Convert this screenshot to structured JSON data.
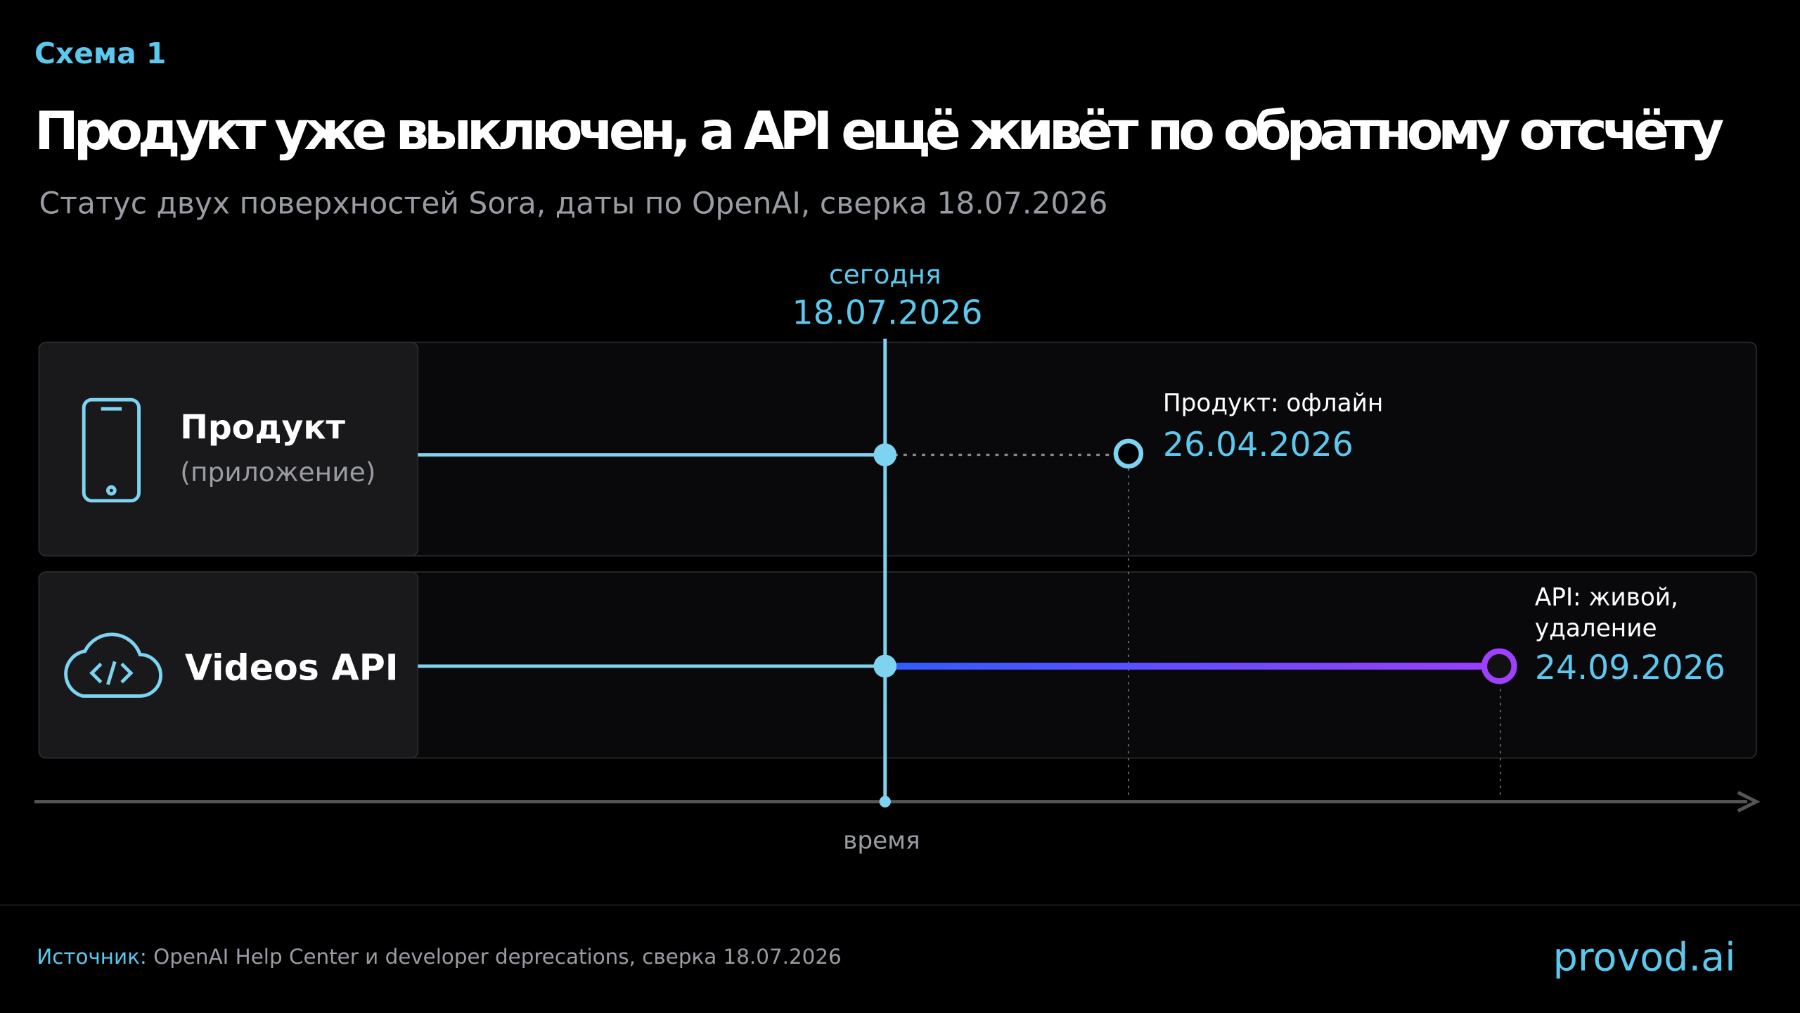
{
  "header": {
    "label": "Схема 1",
    "title": "Продукт уже выключен, а API ещё живёт по обратному отсчёту",
    "subtitle": "Статус двух поверхностей Sora, даты по OpenAI, сверка 18.07.2026"
  },
  "today": {
    "label": "сегодня",
    "date": "18.07.2026"
  },
  "rows": [
    {
      "title": "Продукт",
      "subtitle": "(приложение)",
      "event_label": [
        "Продукт: офлайн"
      ],
      "event_date": "26.04.2026"
    },
    {
      "title": "Videos API",
      "event_label": [
        "API: живой,",
        "удаление"
      ],
      "event_date": "24.09.2026"
    }
  ],
  "axis_label": "время",
  "footer": {
    "source_label": "Источник:",
    "source": "OpenAI Help Center и developer deprecations, сверка 18.07.2026",
    "brand": "provod.ai"
  }
}
